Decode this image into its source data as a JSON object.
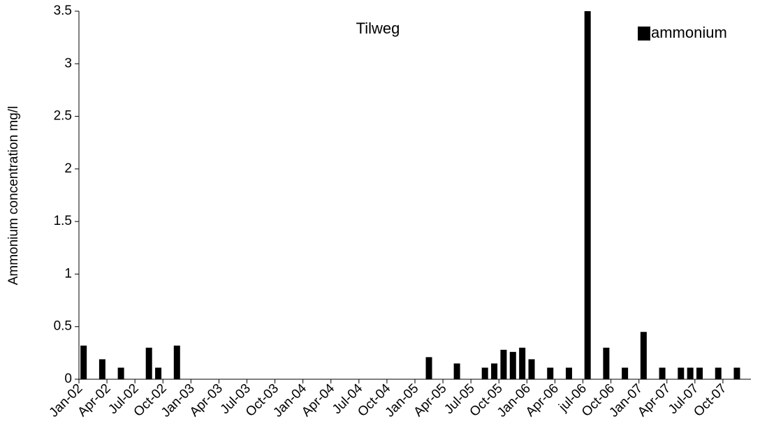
{
  "chart_data": {
    "type": "bar",
    "title": "Tilweg",
    "y_label": "Ammonium concentration mg/l",
    "legend_position": "upper right",
    "series": [
      {
        "name": "ammonium",
        "color": "#000000",
        "x": [
          "2002-01",
          "2002-03",
          "2002-05",
          "2002-08",
          "2002-09",
          "2002-11",
          "2005-02",
          "2005-05",
          "2005-08",
          "2005-09",
          "2005-10",
          "2005-11",
          "2005-12",
          "2006-01",
          "2006-03",
          "2006-05",
          "2006-07",
          "2006-09",
          "2006-11",
          "2007-01",
          "2007-03",
          "2007-05",
          "2007-06",
          "2007-07",
          "2007-09",
          "2007-11"
        ],
        "values": [
          0.32,
          0.19,
          0.11,
          0.3,
          0.11,
          0.32,
          0.21,
          0.15,
          0.11,
          0.15,
          0.28,
          0.26,
          0.3,
          0.19,
          0.11,
          0.11,
          3.5,
          0.3,
          0.11,
          0.45,
          0.11,
          0.11,
          0.11,
          0.11,
          0.11,
          0.11
        ]
      }
    ],
    "xlim": [
      "2002-01",
      "2008-01"
    ],
    "xticks": [
      {
        "value": "2002-01",
        "label": "Jan-02"
      },
      {
        "value": "2002-04",
        "label": "Apr-02"
      },
      {
        "value": "2002-07",
        "label": "Jul-02"
      },
      {
        "value": "2002-10",
        "label": "Oct-02"
      },
      {
        "value": "2003-01",
        "label": "Jan-03"
      },
      {
        "value": "2003-04",
        "label": "Apr-03"
      },
      {
        "value": "2003-07",
        "label": "Jul-03"
      },
      {
        "value": "2003-10",
        "label": "Oct-03"
      },
      {
        "value": "2004-01",
        "label": "Jan-04"
      },
      {
        "value": "2004-04",
        "label": "Apr-04"
      },
      {
        "value": "2004-07",
        "label": "Jul-04"
      },
      {
        "value": "2004-10",
        "label": "Oct-04"
      },
      {
        "value": "2005-01",
        "label": "Jan-05"
      },
      {
        "value": "2005-04",
        "label": "Apr-05"
      },
      {
        "value": "2005-07",
        "label": "Jul-05"
      },
      {
        "value": "2005-10",
        "label": "Oct-05"
      },
      {
        "value": "2006-01",
        "label": "Jan-06"
      },
      {
        "value": "2006-04",
        "label": "Apr-06"
      },
      {
        "value": "2006-07",
        "label": "jul-06"
      },
      {
        "value": "2006-10",
        "label": "Oct-06"
      },
      {
        "value": "2007-01",
        "label": "Jan-07"
      },
      {
        "value": "2007-04",
        "label": "Apr-07"
      },
      {
        "value": "2007-07",
        "label": "Jul-07"
      },
      {
        "value": "2007-10",
        "label": "Oct-07"
      }
    ],
    "ylim": [
      0,
      3.5
    ],
    "yticks": [
      0,
      0.5,
      1,
      1.5,
      2,
      2.5,
      3,
      3.5
    ],
    "grid": false
  }
}
